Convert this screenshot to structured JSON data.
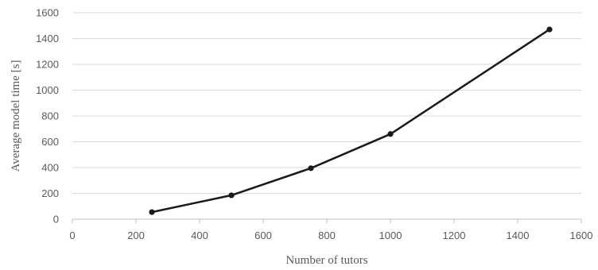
{
  "chart_data": {
    "type": "line",
    "title": "",
    "xlabel": "Number of tutors",
    "ylabel": "Average model time [s]",
    "xlim": [
      0,
      1600
    ],
    "ylim": [
      0,
      1600
    ],
    "x_ticks": [
      0,
      200,
      400,
      600,
      800,
      1000,
      1200,
      1400,
      1600
    ],
    "y_ticks": [
      0,
      200,
      400,
      600,
      800,
      1000,
      1200,
      1400,
      1600
    ],
    "grid": "horizontal",
    "legend": "none",
    "series": [
      {
        "x": [
          250,
          500,
          750,
          1000,
          1500
        ],
        "y": [
          55,
          185,
          395,
          660,
          1470
        ],
        "color": "#1a1a1a"
      }
    ]
  }
}
